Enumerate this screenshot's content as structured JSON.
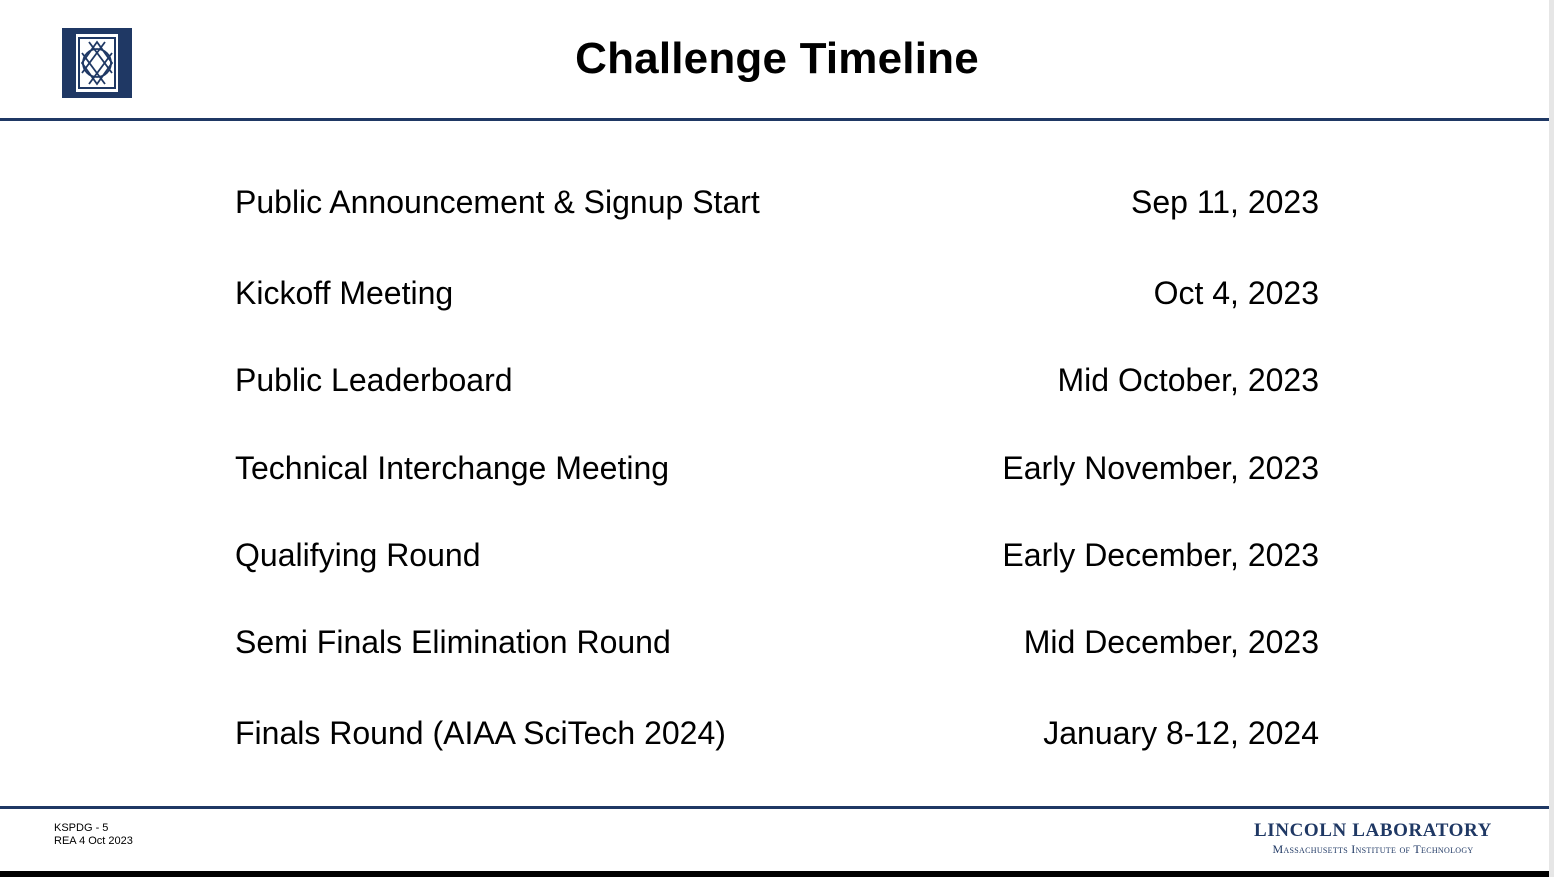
{
  "slide": {
    "title": "Challenge Timeline",
    "accent_color": "#1f3864",
    "logo_icon": "lincoln-lab-emblem-icon"
  },
  "timeline": [
    {
      "event": "Public Announcement & Signup Start",
      "date": "Sep 11, 2023"
    },
    {
      "event": "Kickoff Meeting",
      "date": "Oct 4, 2023"
    },
    {
      "event": "Public Leaderboard",
      "date": "Mid October, 2023"
    },
    {
      "event": "Technical Interchange Meeting",
      "date": "Early November, 2023"
    },
    {
      "event": "Qualifying Round",
      "date": "Early December, 2023"
    },
    {
      "event": "Semi Finals Elimination Round",
      "date": "Mid December, 2023"
    },
    {
      "event": "Finals Round (AIAA SciTech 2024)",
      "date": "January 8-12, 2024"
    }
  ],
  "footer": {
    "slide_id": "KSPDG - 5",
    "author_date": "REA 4 Oct 2023",
    "brand_line1": "LINCOLN LABORATORY",
    "brand_line2": "Massachusetts Institute of Technology"
  }
}
